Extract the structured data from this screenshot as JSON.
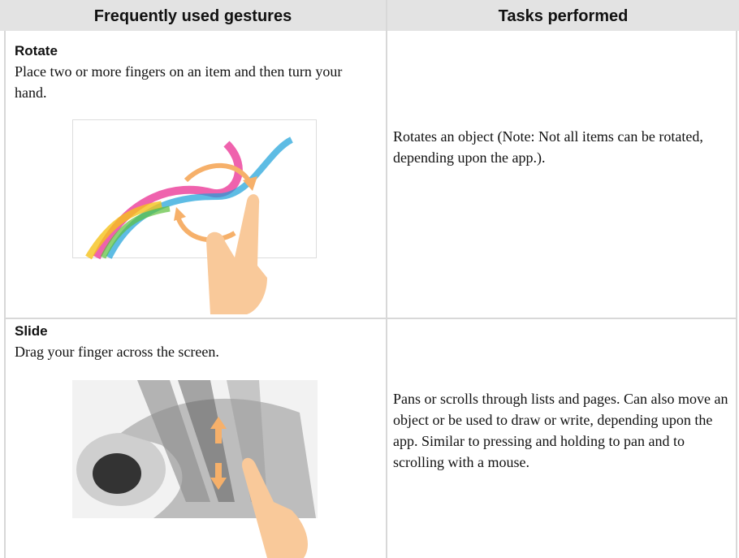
{
  "table": {
    "header": [
      "Frequently used gestures",
      "Tasks performed"
    ],
    "rows": [
      {
        "gesture": "Rotate",
        "description": "Place two or more fingers on an item and then turn your hand.",
        "task": "Rotates an object (Note: Not all items can be rotated, depending upon the app.)."
      },
      {
        "gesture": "Slide",
        "description": "Drag your finger across the screen.",
        "task": "Pans or scrolls through lists and pages. Can also move an object or be used to draw or write, depending upon the app. Similar to pressing and holding to pan and to scrolling with a mouse."
      }
    ]
  }
}
